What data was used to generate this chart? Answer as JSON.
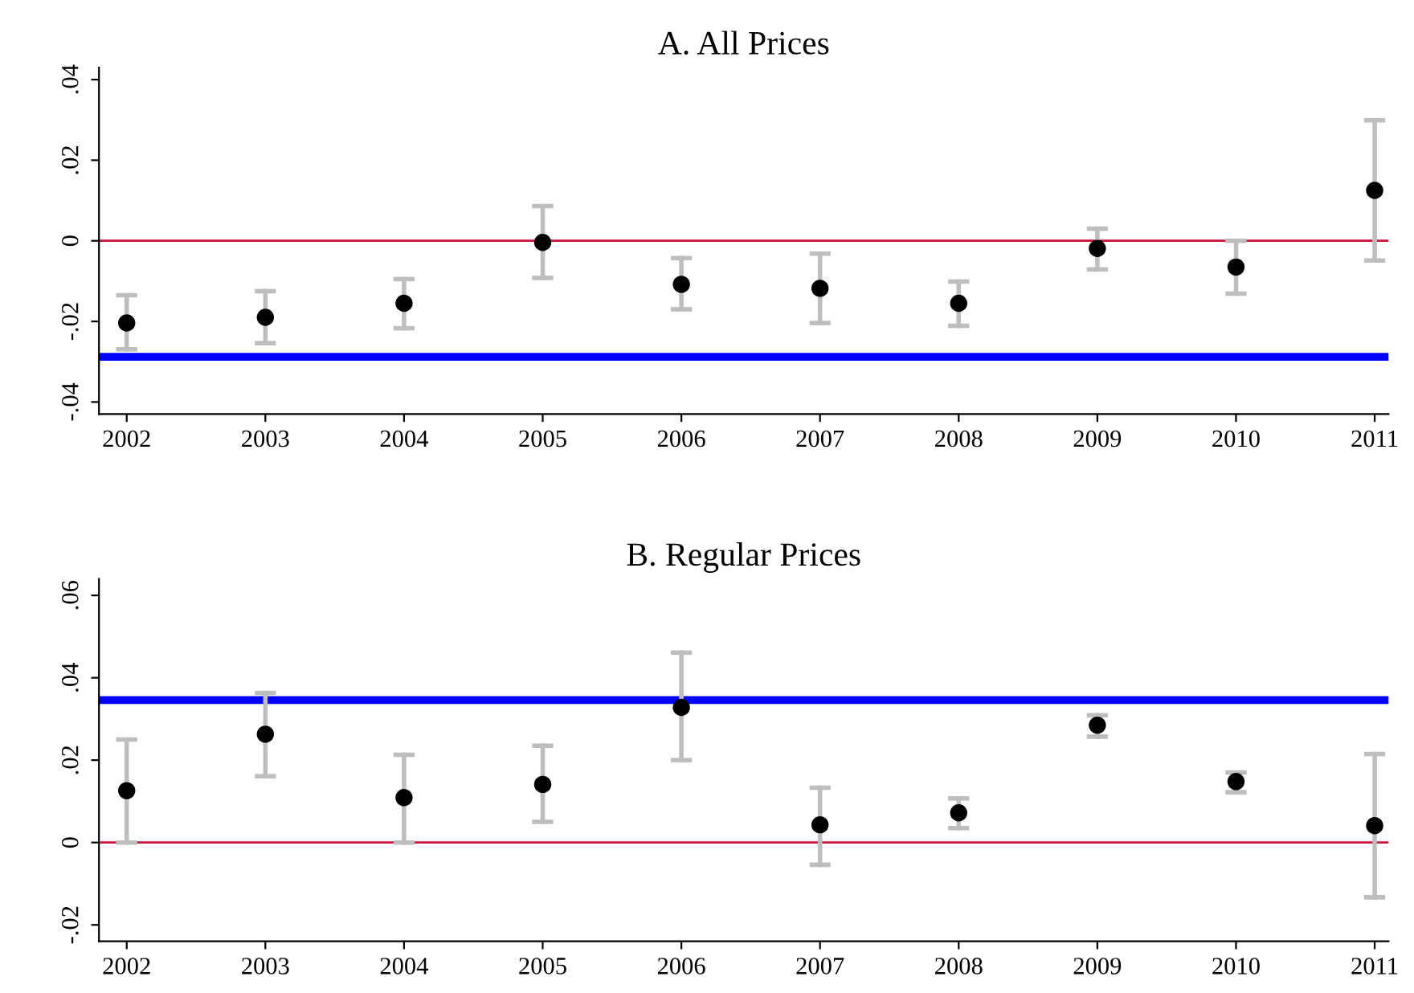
{
  "chart_data": [
    {
      "type": "scatter",
      "title": "A. All Prices",
      "x": [
        2002,
        2003,
        2004,
        2005,
        2006,
        2007,
        2008,
        2009,
        2010,
        2011
      ],
      "series": [
        {
          "color": "#000000",
          "values": [
            -0.0204,
            -0.019,
            -0.0155,
            -0.0004,
            -0.0108,
            -0.0118,
            -0.0155,
            -0.0019,
            -0.0065,
            0.0125
          ],
          "errors": [
            [
              -0.0269,
              -0.0135
            ],
            [
              -0.0254,
              -0.0125
            ],
            [
              -0.0217,
              -0.0095
            ],
            [
              -0.0092,
              0.0086
            ],
            [
              -0.017,
              -0.0043
            ],
            [
              -0.0204,
              -0.0032
            ],
            [
              -0.0211,
              -0.0101
            ],
            [
              -0.0071,
              0.003
            ],
            [
              -0.0131,
              0.0
            ],
            [
              -0.0049,
              0.0299
            ]
          ]
        }
      ],
      "ref_lines": [
        {
          "axis": "y",
          "value": 0,
          "color": "#c8143c",
          "line_style": "solid"
        },
        {
          "axis": "y",
          "value": -0.0288,
          "color": "#0000ff",
          "line_style": "solid"
        }
      ],
      "xlim": [
        2001.8,
        2011.1
      ],
      "xticks": [
        2002,
        2003,
        2004,
        2005,
        2006,
        2007,
        2008,
        2009,
        2010,
        2011
      ],
      "ylim": [
        -0.043,
        0.043
      ],
      "yticks": [
        {
          "value": -0.04,
          "label": "-.04"
        },
        {
          "value": -0.02,
          "label": "-.02"
        },
        0,
        {
          "value": 0.02,
          "label": ".02"
        },
        {
          "value": 0.04,
          "label": ".04"
        }
      ],
      "marker": "circle",
      "grid": false
    },
    {
      "type": "scatter",
      "title": "B. Regular Prices",
      "x": [
        2002,
        2003,
        2004,
        2005,
        2006,
        2007,
        2008,
        2009,
        2010,
        2011
      ],
      "series": [
        {
          "color": "#000000",
          "values": [
            0.0126,
            0.0263,
            0.0109,
            0.0141,
            0.0328,
            0.0043,
            0.0072,
            0.0285,
            0.0148,
            0.0041
          ],
          "errors": [
            [
              0.0,
              0.025
            ],
            [
              0.0161,
              0.0363
            ],
            [
              0.0,
              0.0213
            ],
            [
              0.005,
              0.0235
            ],
            [
              0.02,
              0.0461
            ],
            [
              -0.0054,
              0.0133
            ],
            [
              0.0035,
              0.0107
            ],
            [
              0.0257,
              0.0309
            ],
            [
              0.0122,
              0.017
            ],
            [
              -0.0133,
              0.0215
            ]
          ]
        }
      ],
      "ref_lines": [
        {
          "axis": "y",
          "value": 0,
          "color": "#c8143c",
          "line_style": "solid"
        },
        {
          "axis": "y",
          "value": 0.0346,
          "color": "#0000ff",
          "line_style": "solid"
        }
      ],
      "xlim": [
        2001.8,
        2011.1
      ],
      "xticks": [
        2002,
        2003,
        2004,
        2005,
        2006,
        2007,
        2008,
        2009,
        2010,
        2011
      ],
      "ylim": [
        -0.024,
        0.064
      ],
      "yticks": [
        {
          "value": -0.02,
          "label": "-.02"
        },
        0,
        {
          "value": 0.02,
          "label": ".02"
        },
        {
          "value": 0.04,
          "label": ".04"
        },
        {
          "value": 0.06,
          "label": ".06"
        }
      ],
      "marker": "circle",
      "grid": false
    }
  ]
}
